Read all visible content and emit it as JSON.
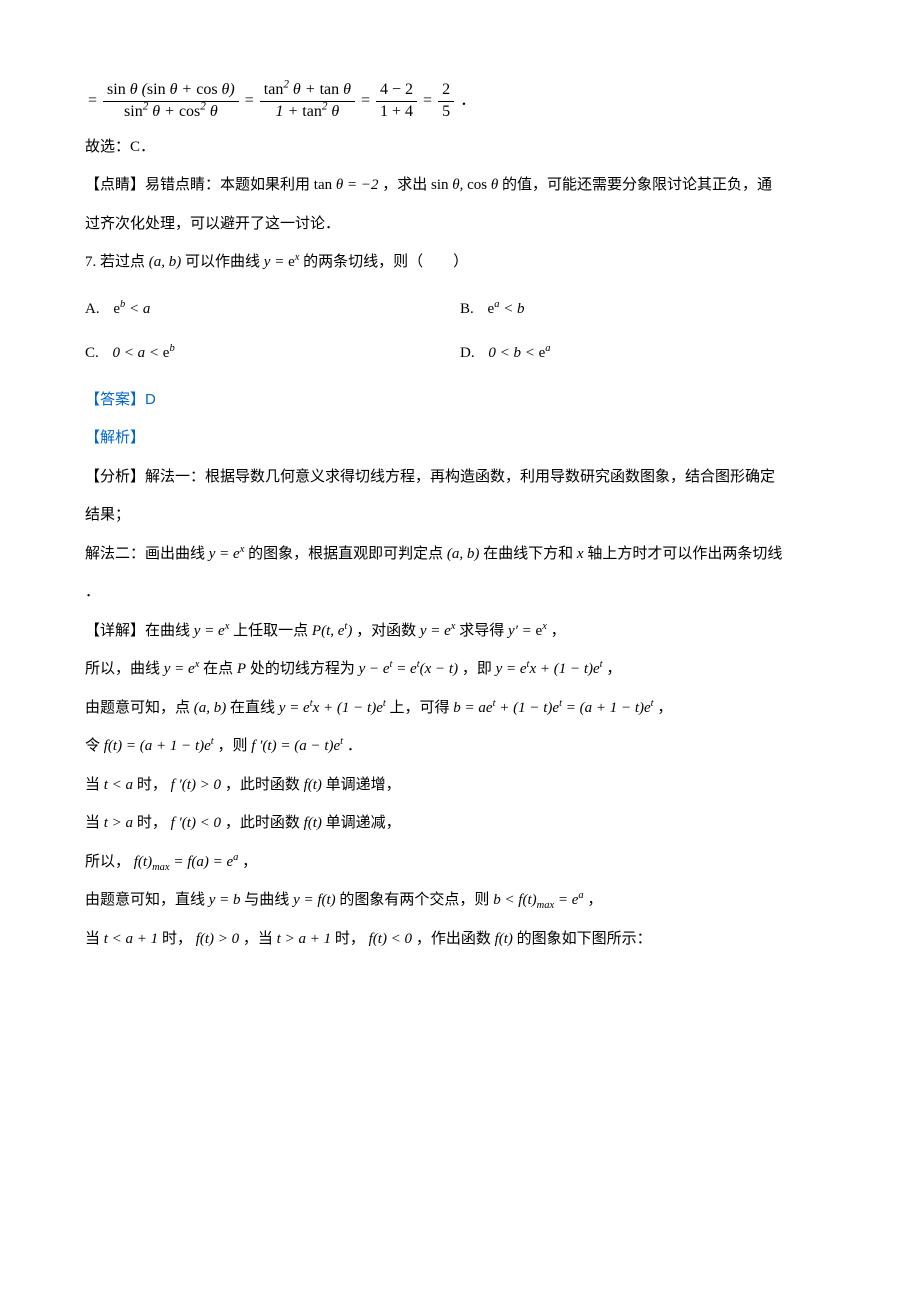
{
  "eq_top": {
    "num1": "sin θ (sin θ + cos θ)",
    "den1": "sin² θ + cos² θ",
    "num2": "tan² θ + tan θ",
    "den2": "1 + tan² θ",
    "num3": "4 − 2",
    "den3": "1 + 4",
    "num4": "2",
    "den4": "5"
  },
  "select_c": "故选：C．",
  "tip_label": "【点睛】",
  "tip_text_1": "易错点睛：本题如果利用 tan θ = −2 ，求出 sin θ, cos θ 的值，可能还需要分象限讨论其正负，通",
  "tip_text_2": "过齐次化处理，可以避开了这一讨论．",
  "q7_prefix": "7.",
  "q7_text_1": "若过点 (a, b) 可以作曲线 y = eˣ 的两条切线，则（　　）",
  "options": {
    "A_label": "A.",
    "A_text": "eᵇ < a",
    "B_label": "B.",
    "B_text": "eᵃ < b",
    "C_label": "C.",
    "C_text": "0 < a < eᵇ",
    "D_label": "D.",
    "D_text": "0 < b < eᵃ"
  },
  "answer_label": "【答案】",
  "answer_value": "D",
  "analysis_label": "【解析】",
  "fenxi_label": "【分析】",
  "fenxi_1": "解法一：根据导数几何意义求得切线方程，再构造函数，利用导数研究函数图象，结合图形确定",
  "fenxi_2": "结果；",
  "fenxi_3": "解法二：画出曲线 y = eˣ 的图象，根据直观即可判定点 (a, b) 在曲线下方和 x 轴上方时才可以作出两条切线",
  "fenxi_4": "．",
  "detail_label": "【详解】",
  "detail_1": "在曲线 y = eˣ 上任取一点 P(t, eᵗ) ，对函数 y = eˣ 求导得 y′ = eˣ ，",
  "detail_2": "所以，曲线 y = eˣ 在点 P 处的切线方程为 y − eᵗ = eᵗ(x − t) ，即 y = eᵗx + (1 − t)eᵗ ，",
  "detail_3": "由题意可知，点 (a, b) 在直线 y = eᵗx + (1 − t)eᵗ 上，可得 b = aeᵗ + (1 − t)eᵗ = (a + 1 − t)eᵗ ，",
  "detail_4": "令 f(t) = (a + 1 − t)eᵗ ，则 f′(t) = (a − t)eᵗ ．",
  "detail_5": "当 t < a 时， f′(t) > 0 ，此时函数 f(t) 单调递增，",
  "detail_6": "当 t > a 时， f′(t) < 0 ，此时函数 f(t) 单调递减，",
  "detail_7_a": "所以，",
  "detail_7_b": "f(t)ₘₐₓ = f(a) = eᵃ ，",
  "detail_8": "由题意可知，直线 y = b 与曲线 y = f(t) 的图象有两个交点，则 b < f(t)ₘₐₓ = eᵃ ，",
  "detail_9": "当 t < a + 1 时， f(t) > 0 ，当 t > a + 1 时， f(t) < 0 ，作出函数 f(t) 的图象如下图所示："
}
